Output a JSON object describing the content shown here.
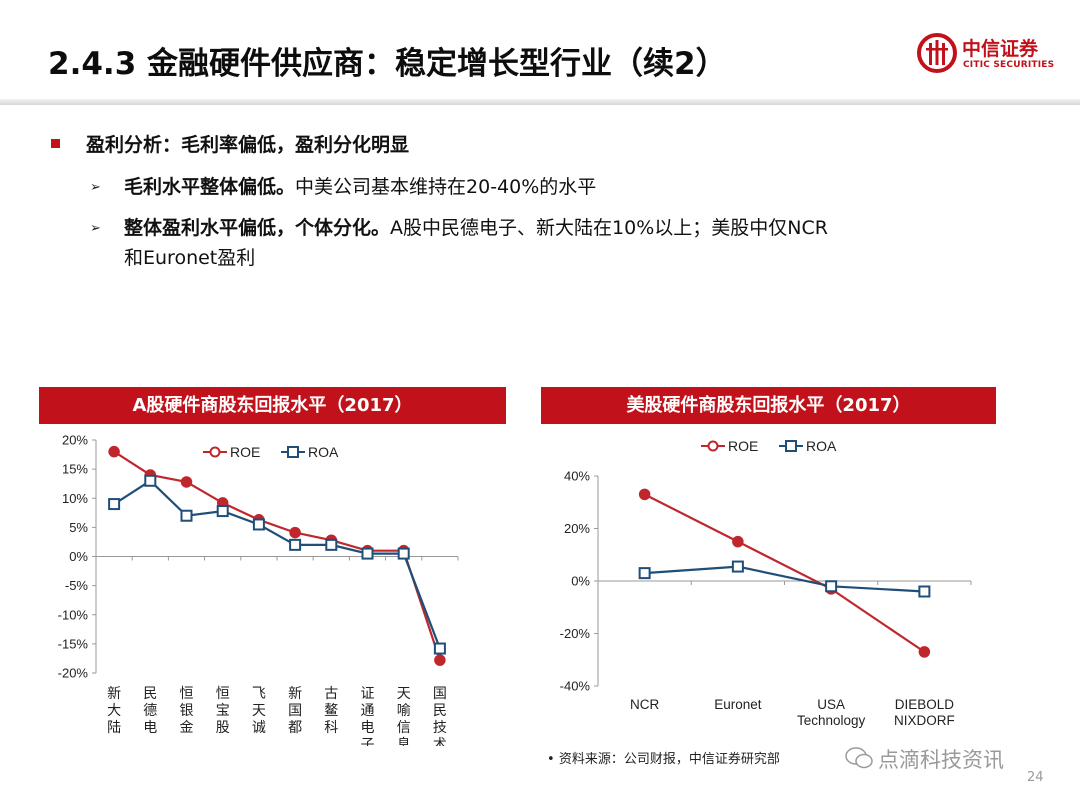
{
  "slide": {
    "title": "2.4.3 金融硬件供应商：稳定增长型行业（续2）",
    "logo": {
      "cn": "中信证券",
      "en": "CITIC SECURITIES"
    },
    "bullet": "盈利分析：毛利率偏低，盈利分化明显",
    "sub1": {
      "bold": "毛利水平整体偏低。",
      "rest": "中美公司基本维持在20-40%的水平"
    },
    "sub2": {
      "bold": "整体盈利水平偏低，个体分化。",
      "rest": "A股中民德电子、新大陆在10%以上；美股中仅NCR",
      "line2": "和Euronet盈利"
    },
    "source": "资料来源：公司财报，中信证券研究部",
    "watermark": "点滴科技资讯",
    "page": "24"
  },
  "colors": {
    "accent": "#c1121c",
    "roe": "#c0272d",
    "roa": "#1f4e79"
  },
  "chart_data": [
    {
      "type": "line",
      "title": "A股硬件商股东回报水平（2017）",
      "categories": [
        "新大陆",
        "民德电",
        "恒银金",
        "恒宝股",
        "飞天诚",
        "新国都",
        "古鳌科",
        "证通电子",
        "天喻信息",
        "国民技术"
      ],
      "series": [
        {
          "name": "ROE",
          "values": [
            18.0,
            14.0,
            12.8,
            9.2,
            6.3,
            4.1,
            2.8,
            1.0,
            1.0,
            -17.8
          ]
        },
        {
          "name": "ROA",
          "values": [
            9.0,
            13.0,
            7.0,
            7.8,
            5.5,
            2.0,
            2.0,
            0.5,
            0.5,
            -15.8
          ]
        }
      ],
      "ylim": [
        -20,
        20
      ],
      "yticks": [
        "20%",
        "15%",
        "10%",
        "5%",
        "0%",
        "-5%",
        "-10%",
        "-15%",
        "-20%"
      ],
      "legend": "top"
    },
    {
      "type": "line",
      "title": "美股硬件商股东回报水平（2017）",
      "categories": [
        "NCR",
        "Euronet",
        "USA Technology",
        "DIEBOLD NIXDORF"
      ],
      "series": [
        {
          "name": "ROE",
          "values": [
            33.0,
            15.0,
            -3.0,
            -27.0
          ]
        },
        {
          "name": "ROA",
          "values": [
            3.0,
            5.5,
            -2.0,
            -4.0
          ]
        }
      ],
      "ylim": [
        -40,
        40
      ],
      "yticks": [
        "40%",
        "20%",
        "0%",
        "-20%",
        "-40%"
      ],
      "legend": "top"
    }
  ]
}
